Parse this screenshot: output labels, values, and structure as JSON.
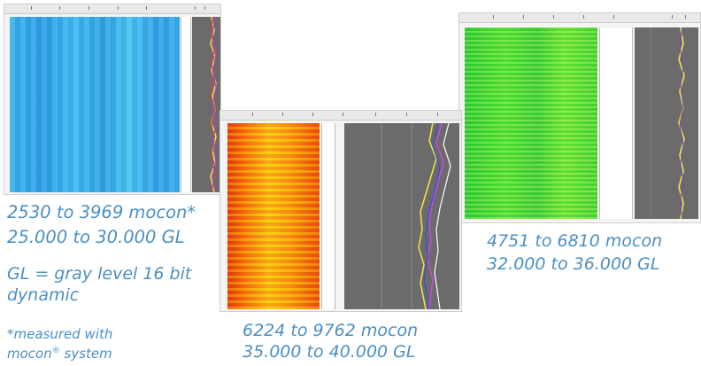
{
  "panel_blue": {
    "caption_line1": "2530 to 3969 mocon*",
    "caption_line2": "25.000 to 30.000 GL",
    "color": "#35b0ee"
  },
  "gl_note": {
    "line1": "GL = gray level 16 bit",
    "line2": "dynamic"
  },
  "footnote": {
    "line1": "*measured with",
    "line2_prefix": "mocon",
    "line2_reg": "®",
    "line2_suffix": " system"
  },
  "panel_red": {
    "caption_line1": "6224 to 9762 mocon",
    "caption_line2": "35.000 to 40.000 GL",
    "color": "#f57a10"
  },
  "panel_green": {
    "caption_line1": "4751 to 6810 mocon",
    "caption_line2": "32.000 to 36.000 GL",
    "color": "#49d83b"
  }
}
